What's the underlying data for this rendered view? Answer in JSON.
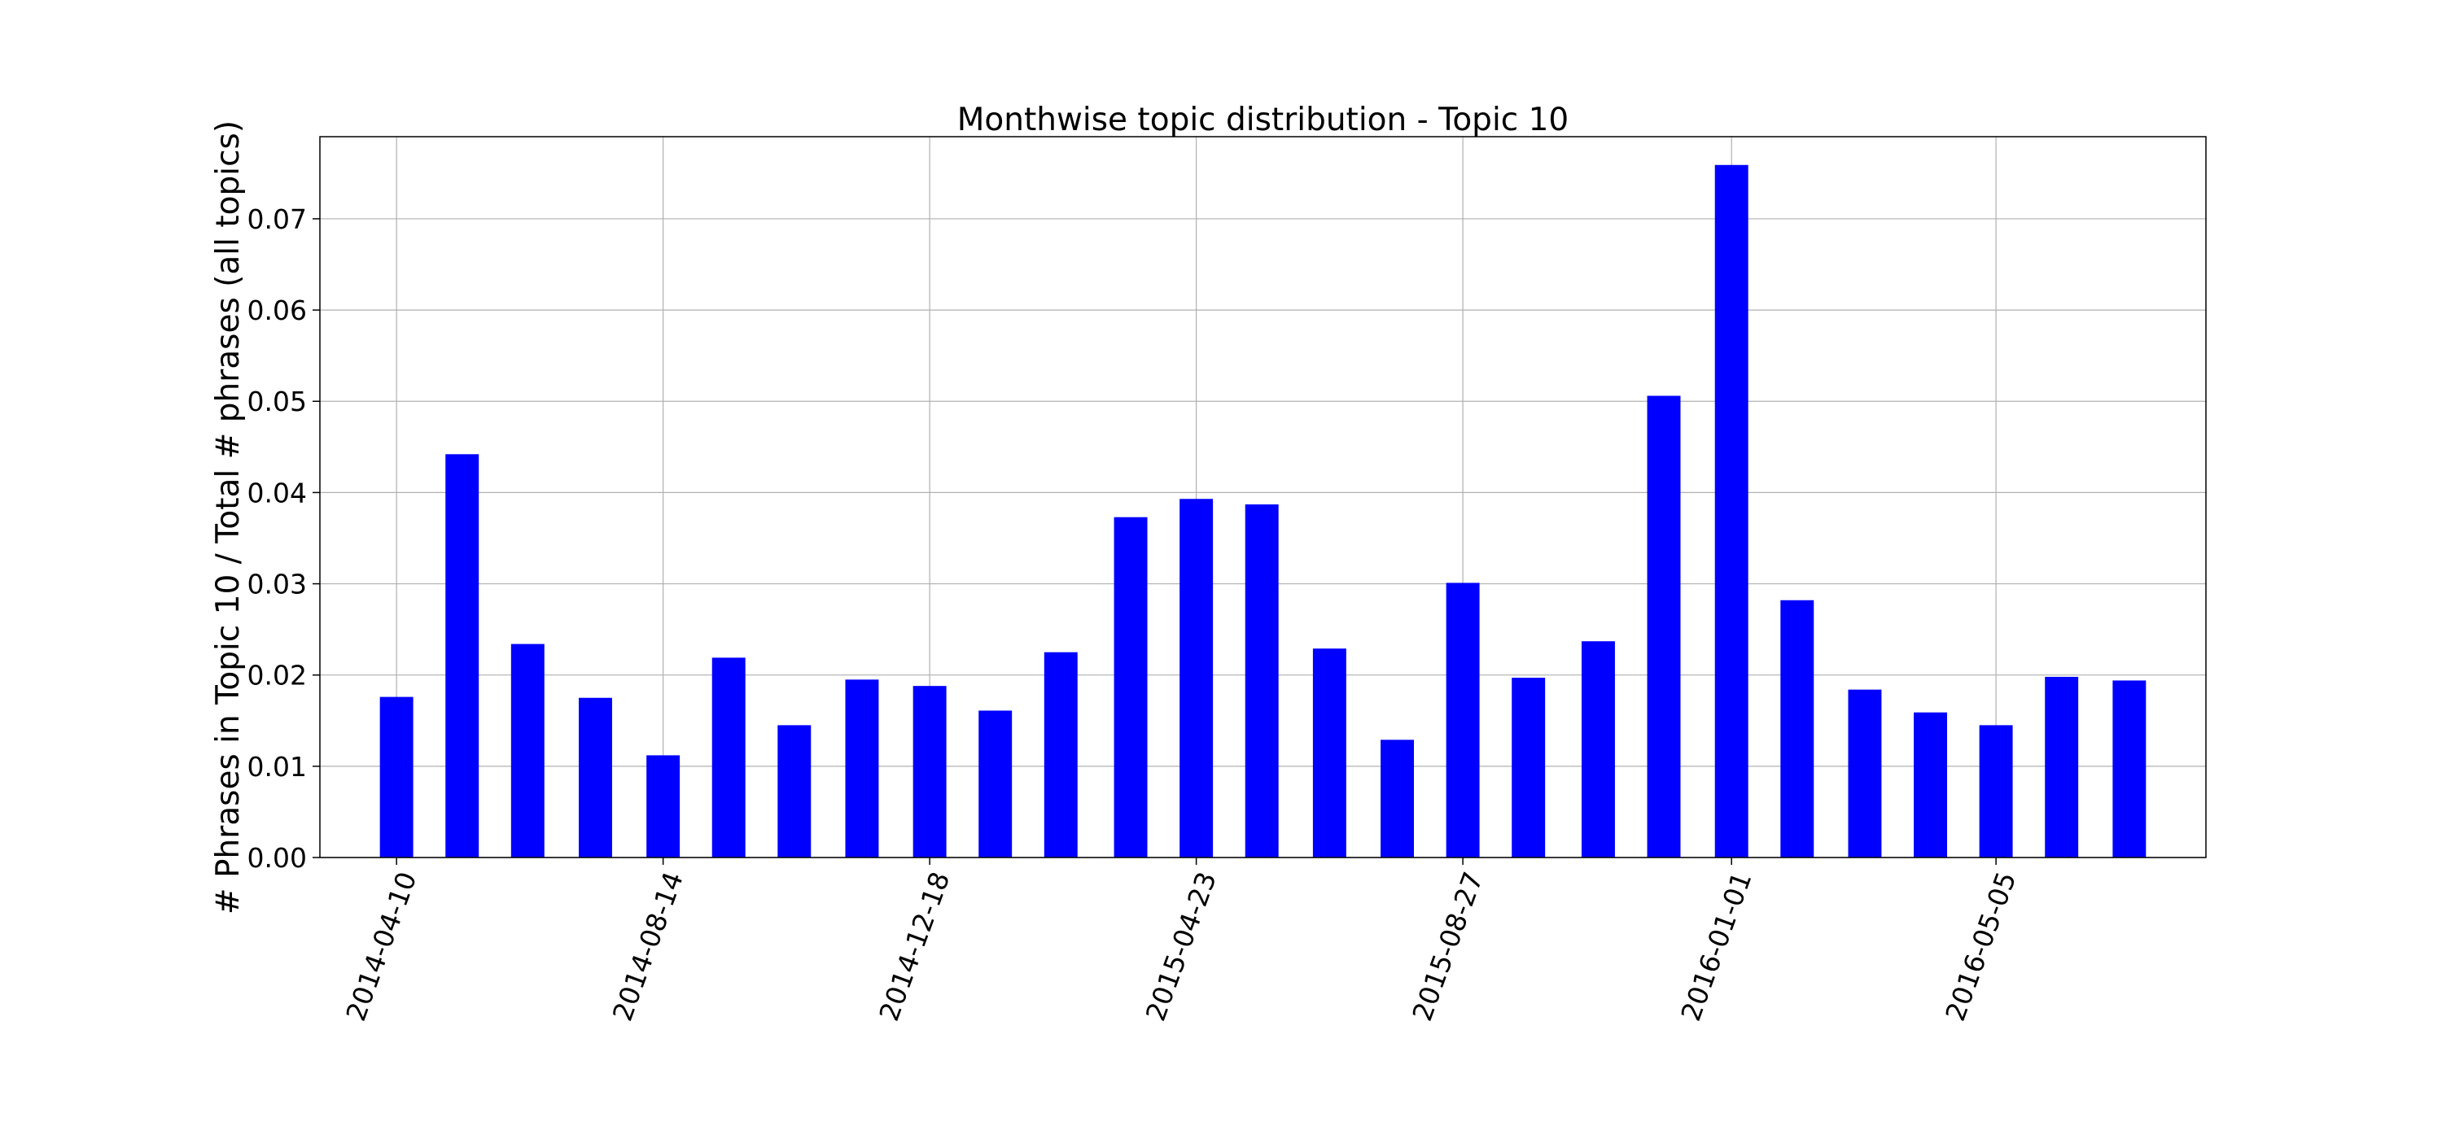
{
  "chart_data": {
    "type": "bar",
    "title": "Monthwise topic distribution - Topic 10",
    "xlabel": "",
    "ylabel": "# Phrases in Topic 10 / Total # phrases (all topics)",
    "ylim": [
      0,
      0.079
    ],
    "yticks": [
      "0.00",
      "0.01",
      "0.02",
      "0.03",
      "0.04",
      "0.05",
      "0.06",
      "0.07"
    ],
    "xticks": [
      "2014-04-10",
      "2014-08-14",
      "2014-12-18",
      "2015-04-23",
      "2015-08-27",
      "2016-01-01",
      "2016-05-05"
    ],
    "grid": true,
    "bar_color": "#0000ff",
    "x": [
      "2014-04-10",
      "2014-05-11",
      "2014-06-11",
      "2014-07-13",
      "2014-08-14",
      "2014-09-14",
      "2014-10-15",
      "2014-11-16",
      "2014-12-18",
      "2015-01-18",
      "2015-02-18",
      "2015-03-23",
      "2015-04-23",
      "2015-05-24",
      "2015-06-25",
      "2015-07-27",
      "2015-08-27",
      "2015-09-27",
      "2015-10-30",
      "2015-11-30",
      "2016-01-01",
      "2016-02-01",
      "2016-03-04",
      "2016-04-04",
      "2016-05-05",
      "2016-06-05",
      "2016-07-07"
    ],
    "values": [
      0.0176,
      0.0442,
      0.0234,
      0.0175,
      0.0112,
      0.0219,
      0.0145,
      0.0195,
      0.0188,
      0.0161,
      0.0225,
      0.0373,
      0.0393,
      0.0387,
      0.0229,
      0.0129,
      0.0301,
      0.0197,
      0.0237,
      0.0506,
      0.0759,
      0.0282,
      0.0184,
      0.0159,
      0.0145,
      0.0198,
      0.0194
    ]
  }
}
